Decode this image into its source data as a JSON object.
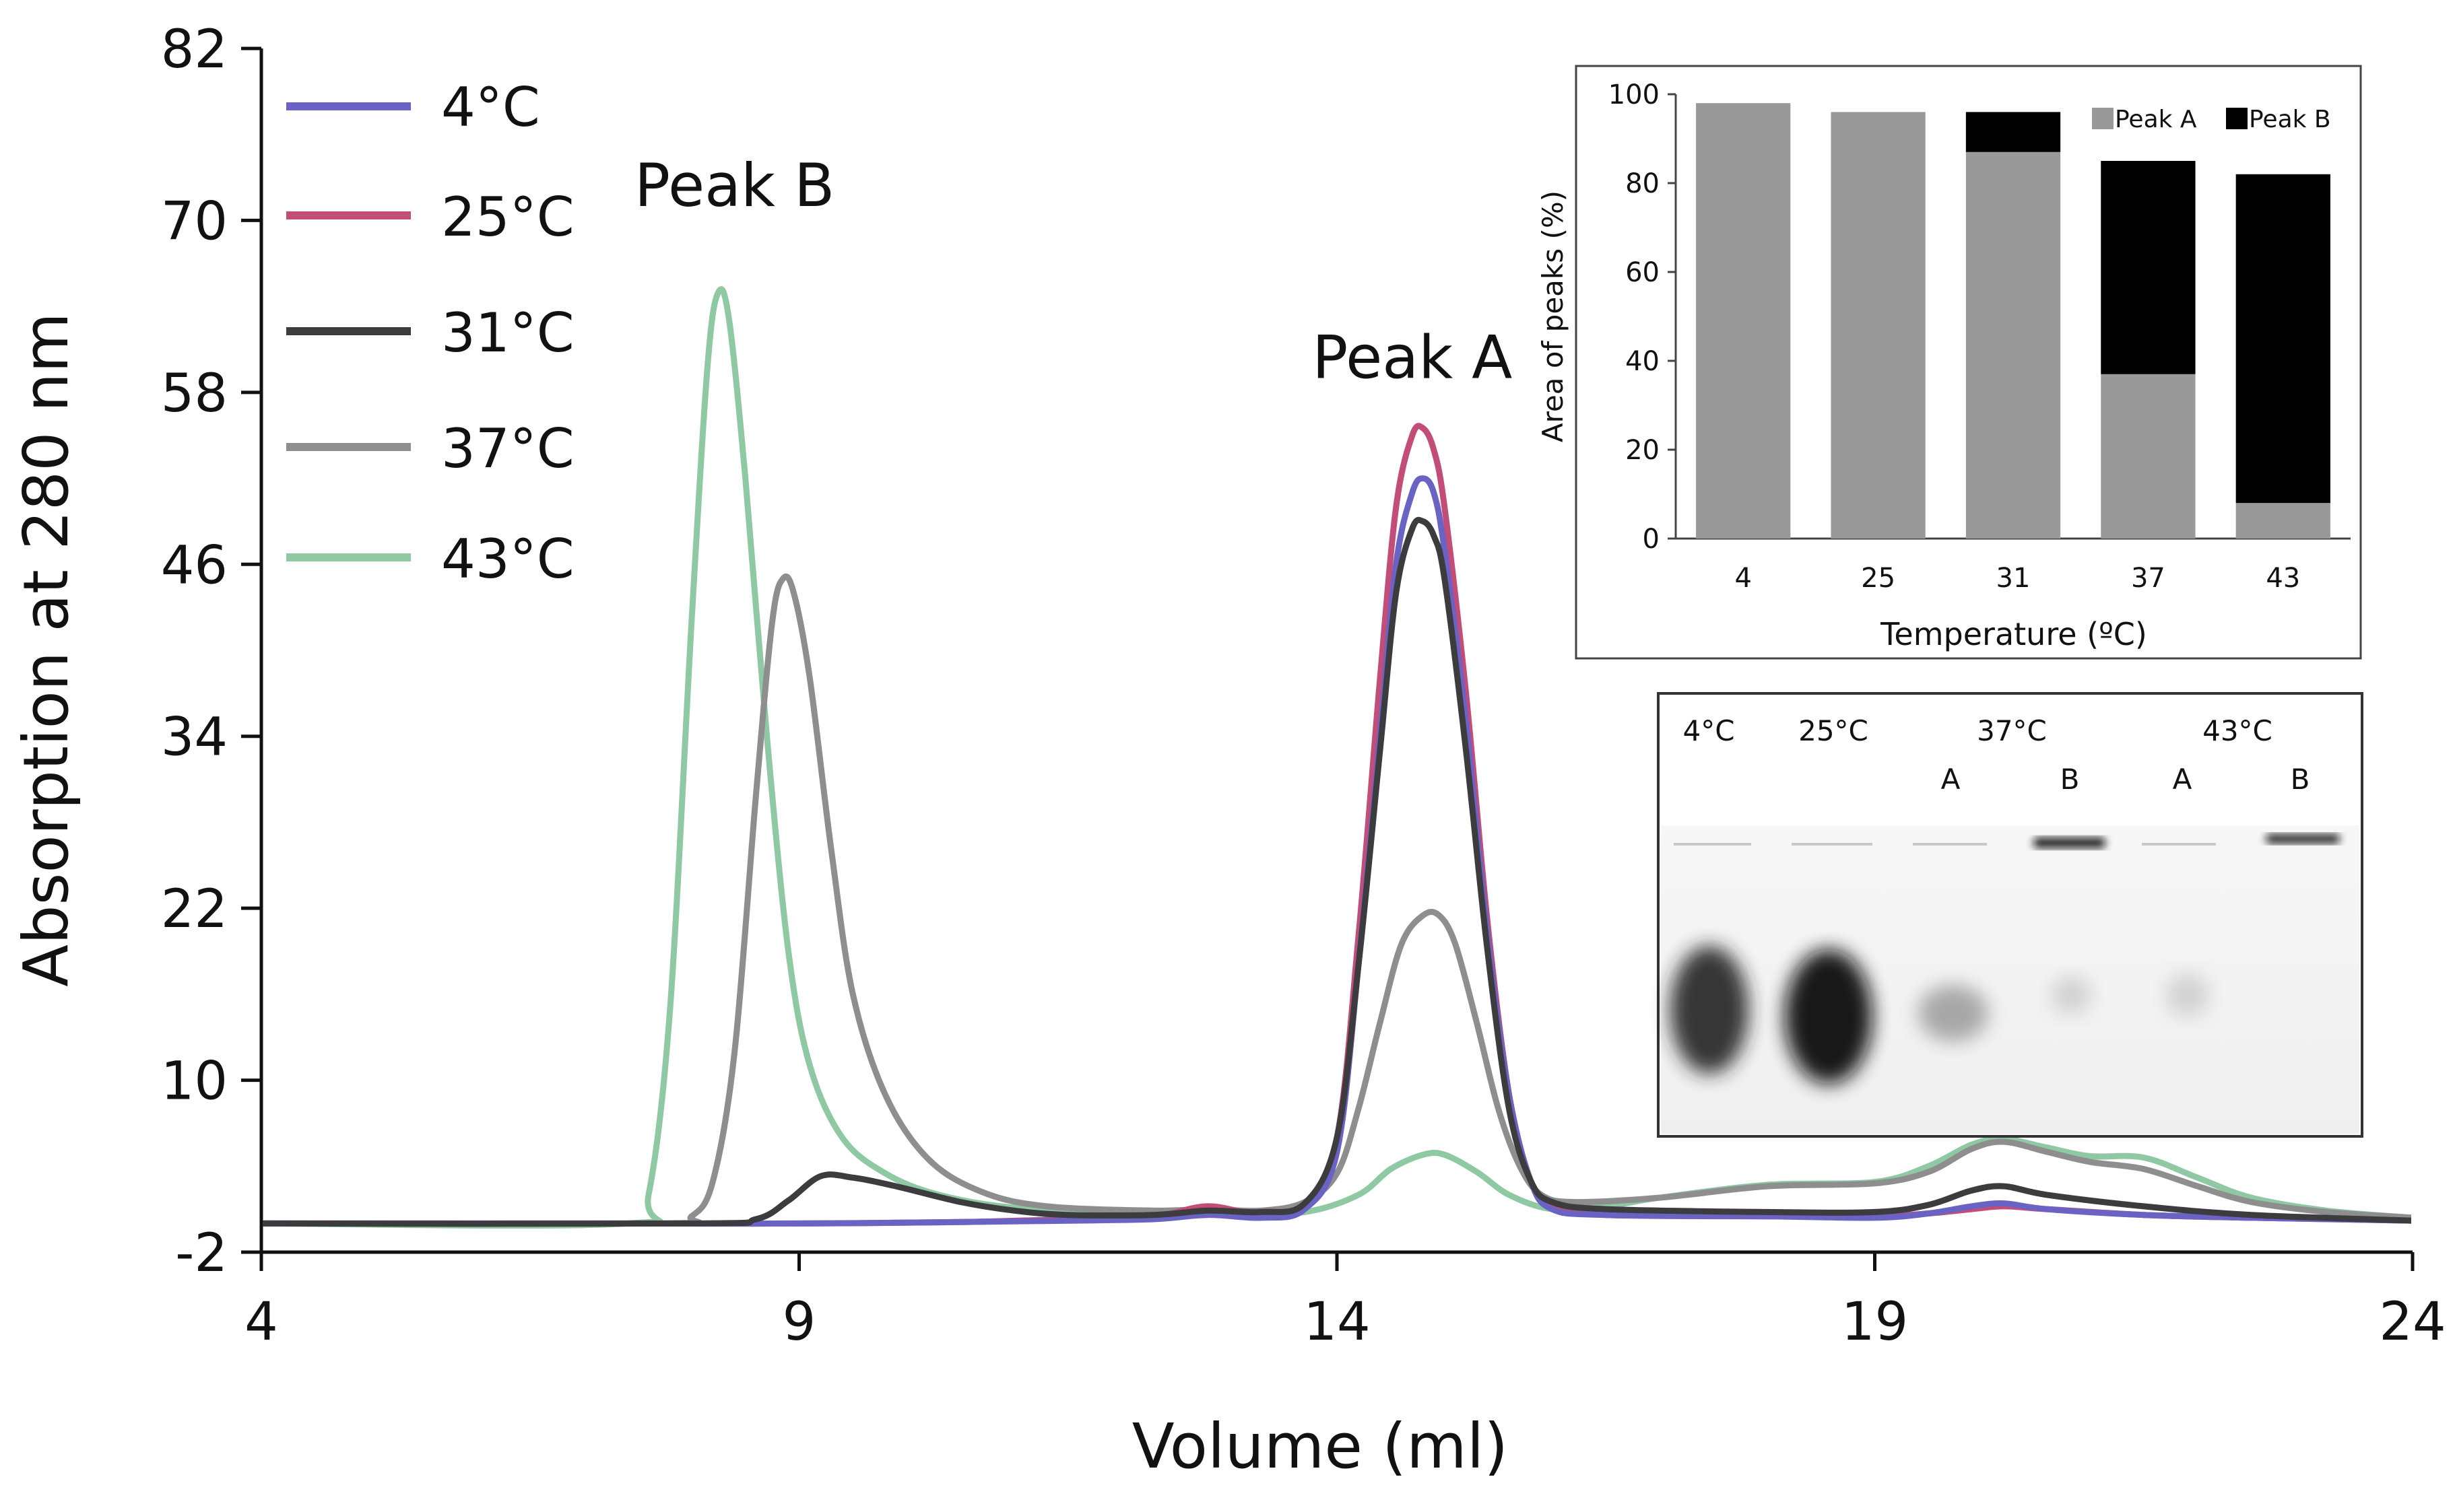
{
  "chart_data": [
    {
      "id": "chromatogram",
      "type": "line",
      "xlabel": "Volume (ml)",
      "ylabel": "Absorption at 280 nm",
      "xlim": [
        4,
        24
      ],
      "ylim": [
        -2,
        82
      ],
      "xticks": [
        4,
        9,
        14,
        19,
        24
      ],
      "yticks": [
        -2,
        10,
        22,
        34,
        46,
        58,
        70,
        82
      ],
      "grid": false,
      "legend_position": "top-left",
      "annotations": [
        {
          "text": "Peak B",
          "x": 8.4,
          "y": 71
        },
        {
          "text": "Peak A",
          "x": 14.7,
          "y": 59
        }
      ],
      "series": [
        {
          "name": "4°C",
          "color": "#6b63c4",
          "points": [
            [
              4,
              0
            ],
            [
              7.5,
              0
            ],
            [
              9,
              0
            ],
            [
              10.5,
              0.1
            ],
            [
              11.5,
              0.2
            ],
            [
              12.3,
              0.3
            ],
            [
              12.8,
              0.6
            ],
            [
              13.3,
              0.4
            ],
            [
              13.7,
              1.0
            ],
            [
              14.0,
              5
            ],
            [
              14.2,
              18
            ],
            [
              14.4,
              34
            ],
            [
              14.55,
              46
            ],
            [
              14.7,
              51
            ],
            [
              14.8,
              52
            ],
            [
              14.9,
              51
            ],
            [
              15.0,
              47
            ],
            [
              15.2,
              35
            ],
            [
              15.4,
              20
            ],
            [
              15.6,
              9
            ],
            [
              15.8,
              3
            ],
            [
              16.0,
              1
            ],
            [
              16.5,
              0.6
            ],
            [
              18,
              0.5
            ],
            [
              19,
              0.4
            ],
            [
              19.5,
              0.7
            ],
            [
              19.9,
              1.2
            ],
            [
              20.2,
              1.4
            ],
            [
              20.6,
              1.0
            ],
            [
              21.5,
              0.6
            ],
            [
              22.5,
              0.4
            ],
            [
              24,
              0.2
            ]
          ]
        },
        {
          "name": "25°C",
          "color": "#c24d78",
          "points": [
            [
              4,
              0
            ],
            [
              7.5,
              0
            ],
            [
              9,
              0
            ],
            [
              10.5,
              0.1
            ],
            [
              11.5,
              0.3
            ],
            [
              12.3,
              0.5
            ],
            [
              12.8,
              1.2
            ],
            [
              13.3,
              0.6
            ],
            [
              13.7,
              1.2
            ],
            [
              14.0,
              6
            ],
            [
              14.2,
              20
            ],
            [
              14.4,
              38
            ],
            [
              14.55,
              50
            ],
            [
              14.7,
              55
            ],
            [
              14.8,
              55.5
            ],
            [
              14.9,
              54
            ],
            [
              15.0,
              50
            ],
            [
              15.2,
              37
            ],
            [
              15.4,
              21
            ],
            [
              15.6,
              9
            ],
            [
              15.8,
              3
            ],
            [
              16.0,
              1.2
            ],
            [
              16.5,
              0.6
            ],
            [
              18,
              0.5
            ],
            [
              19,
              0.5
            ],
            [
              19.5,
              0.7
            ],
            [
              19.9,
              1.0
            ],
            [
              20.2,
              1.2
            ],
            [
              20.6,
              1.0
            ],
            [
              21.5,
              0.6
            ],
            [
              22.5,
              0.4
            ],
            [
              24,
              0.2
            ]
          ]
        },
        {
          "name": "31°C",
          "color": "#3c3c3e",
          "points": [
            [
              4,
              0
            ],
            [
              8.0,
              0
            ],
            [
              8.6,
              0.3
            ],
            [
              8.9,
              1.6
            ],
            [
              9.2,
              3.3
            ],
            [
              9.5,
              3.2
            ],
            [
              9.9,
              2.6
            ],
            [
              10.5,
              1.5
            ],
            [
              11,
              0.9
            ],
            [
              11.5,
              0.6
            ],
            [
              12.3,
              0.6
            ],
            [
              12.8,
              0.9
            ],
            [
              13.3,
              0.8
            ],
            [
              13.7,
              1.4
            ],
            [
              14.0,
              6
            ],
            [
              14.2,
              18
            ],
            [
              14.4,
              33
            ],
            [
              14.55,
              44
            ],
            [
              14.7,
              48.5
            ],
            [
              14.8,
              49
            ],
            [
              14.9,
              48
            ],
            [
              15.0,
              45
            ],
            [
              15.2,
              33
            ],
            [
              15.4,
              19
            ],
            [
              15.6,
              8
            ],
            [
              15.8,
              3
            ],
            [
              16.0,
              1.5
            ],
            [
              16.5,
              1.0
            ],
            [
              18,
              0.8
            ],
            [
              19,
              0.8
            ],
            [
              19.5,
              1.3
            ],
            [
              19.9,
              2.3
            ],
            [
              20.2,
              2.6
            ],
            [
              20.6,
              2.0
            ],
            [
              21.5,
              1.2
            ],
            [
              22.5,
              0.6
            ],
            [
              24,
              0.2
            ]
          ]
        },
        {
          "name": "37°C",
          "color": "#8e8e8e",
          "points": [
            [
              4,
              0
            ],
            [
              7.7,
              0
            ],
            [
              8.0,
              0.5
            ],
            [
              8.2,
              3
            ],
            [
              8.4,
              12
            ],
            [
              8.6,
              30
            ],
            [
              8.75,
              42
            ],
            [
              8.85,
              45
            ],
            [
              8.95,
              44
            ],
            [
              9.1,
              38
            ],
            [
              9.3,
              26
            ],
            [
              9.5,
              16
            ],
            [
              9.8,
              9
            ],
            [
              10.2,
              4.5
            ],
            [
              10.7,
              2.2
            ],
            [
              11.3,
              1.2
            ],
            [
              12.3,
              0.9
            ],
            [
              12.8,
              1.0
            ],
            [
              13.3,
              0.9
            ],
            [
              13.7,
              1.5
            ],
            [
              14.0,
              3.5
            ],
            [
              14.2,
              8
            ],
            [
              14.4,
              14
            ],
            [
              14.6,
              19.5
            ],
            [
              14.8,
              21.5
            ],
            [
              14.95,
              21.5
            ],
            [
              15.1,
              19.5
            ],
            [
              15.3,
              14
            ],
            [
              15.5,
              8
            ],
            [
              15.7,
              4
            ],
            [
              15.9,
              2
            ],
            [
              16.2,
              1.5
            ],
            [
              17,
              1.8
            ],
            [
              18,
              2.6
            ],
            [
              19,
              2.8
            ],
            [
              19.5,
              3.6
            ],
            [
              19.9,
              5.2
            ],
            [
              20.2,
              5.7
            ],
            [
              20.6,
              5.0
            ],
            [
              21,
              4.3
            ],
            [
              21.5,
              3.8
            ],
            [
              22,
              2.6
            ],
            [
              22.5,
              1.5
            ],
            [
              23.2,
              0.8
            ],
            [
              24,
              0.4
            ]
          ]
        },
        {
          "name": "43°C",
          "color": "#8fc9a3",
          "points": [
            [
              4,
              0
            ],
            [
              7.4,
              0
            ],
            [
              7.6,
              2
            ],
            [
              7.8,
              15
            ],
            [
              8.0,
              42
            ],
            [
              8.15,
              60
            ],
            [
              8.25,
              65
            ],
            [
              8.35,
              63
            ],
            [
              8.5,
              52
            ],
            [
              8.7,
              34
            ],
            [
              8.9,
              19
            ],
            [
              9.1,
              11
            ],
            [
              9.4,
              6
            ],
            [
              9.8,
              3.5
            ],
            [
              10.3,
              2
            ],
            [
              11,
              1.1
            ],
            [
              12,
              0.8
            ],
            [
              13,
              0.7
            ],
            [
              13.7,
              0.8
            ],
            [
              14.2,
              2
            ],
            [
              14.5,
              3.8
            ],
            [
              14.8,
              4.8
            ],
            [
              15.0,
              4.8
            ],
            [
              15.3,
              3.6
            ],
            [
              15.6,
              2
            ],
            [
              16.0,
              1.0
            ],
            [
              16.5,
              1.2
            ],
            [
              17,
              1.8
            ],
            [
              18,
              2.7
            ],
            [
              19,
              2.9
            ],
            [
              19.5,
              4
            ],
            [
              19.9,
              5.5
            ],
            [
              20.2,
              5.9
            ],
            [
              20.6,
              5.3
            ],
            [
              21,
              4.7
            ],
            [
              21.5,
              4.6
            ],
            [
              22,
              3.2
            ],
            [
              22.5,
              1.8
            ],
            [
              23.2,
              0.9
            ],
            [
              24,
              0.4
            ]
          ]
        }
      ]
    },
    {
      "id": "inset-bar",
      "type": "bar",
      "stacked": true,
      "categories": [
        "4",
        "25",
        "31",
        "37",
        "43"
      ],
      "series": [
        {
          "name": "Peak A",
          "color": "#999999",
          "values": [
            98,
            96,
            87,
            37,
            8
          ]
        },
        {
          "name": "Peak B",
          "color": "#000000",
          "values": [
            0,
            0,
            9,
            48,
            74
          ]
        }
      ],
      "xlabel": "Temperature (ºC)",
      "ylabel": "Area of peaks (%)",
      "ylim": [
        0,
        100
      ],
      "yticks": [
        0,
        20,
        40,
        60,
        80,
        100
      ],
      "legend_position": "top-right"
    }
  ],
  "gel": {
    "lane_labels": [
      "4°C",
      "25°C",
      "37°C",
      "43°C"
    ],
    "sublane_labels": [
      "A",
      "B",
      "A",
      "B"
    ]
  }
}
